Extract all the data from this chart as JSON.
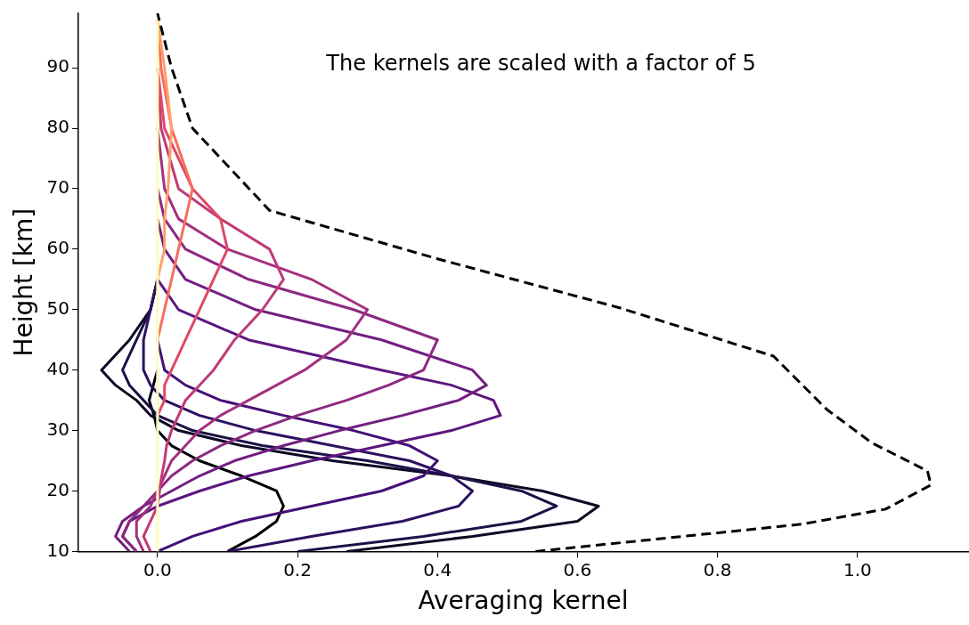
{
  "chart_data": {
    "type": "line",
    "xlabel": "Averaging kernel",
    "ylabel": "Height [km]",
    "annotations": [
      "The kernels are scaled with a factor of 5"
    ],
    "xlim": [
      -0.113,
      1.158
    ],
    "xticks": [
      {
        "value": 0,
        "label": "0.0"
      },
      0.2,
      0.4,
      0.6,
      0.8,
      {
        "value": 1,
        "label": "1.0"
      }
    ],
    "ylim": [
      10,
      99
    ],
    "yticks": [
      10,
      20,
      30,
      40,
      50,
      60,
      70,
      80,
      90
    ],
    "grid": false,
    "legend": false,
    "series": [
      {
        "color": "#000004",
        "x": [
          0.1,
          0.14,
          0.17,
          0.18,
          0.17,
          0.12,
          0.06,
          0.02,
          0,
          -0.005,
          -0.012,
          -0.006,
          0
        ],
        "values": [
          10,
          12.5,
          15,
          17.5,
          20,
          22.5,
          25,
          27.5,
          30,
          32.5,
          35,
          37.5,
          40
        ]
      },
      {
        "color": "#0b0924",
        "x": [
          0.27,
          0.45,
          0.6,
          0.63,
          0.55,
          0.42,
          0.25,
          0.12,
          0.03,
          -0.01,
          -0.03,
          -0.06,
          -0.08,
          -0.04,
          -0.01,
          0
        ],
        "values": [
          10,
          12.5,
          15,
          17.5,
          20,
          22.5,
          25,
          27.5,
          30,
          32.5,
          35,
          37.5,
          40,
          45,
          50,
          55
        ]
      },
      {
        "color": "#1d1147",
        "x": [
          0.2,
          0.38,
          0.52,
          0.57,
          0.52,
          0.42,
          0.3,
          0.15,
          0.05,
          0,
          -0.02,
          -0.04,
          -0.05,
          -0.03,
          -0.01,
          0
        ],
        "values": [
          10,
          12.5,
          15,
          17.5,
          20,
          22.5,
          25,
          27.5,
          30,
          32.5,
          35,
          37.5,
          40,
          45,
          50,
          55
        ]
      },
      {
        "color": "#2d1160",
        "x": [
          0.1,
          0.22,
          0.35,
          0.43,
          0.45,
          0.42,
          0.36,
          0.25,
          0.14,
          0.06,
          0.01,
          -0.01,
          -0.02,
          -0.02,
          -0.01,
          0
        ],
        "values": [
          10,
          12.5,
          15,
          17.5,
          20,
          22.5,
          25,
          27.5,
          30,
          32.5,
          35,
          37.5,
          40,
          45,
          50,
          55
        ]
      },
      {
        "color": "#451077",
        "x": [
          0,
          0.05,
          0.12,
          0.22,
          0.32,
          0.38,
          0.4,
          0.36,
          0.28,
          0.18,
          0.09,
          0.04,
          0.01,
          0
        ],
        "values": [
          10,
          12.5,
          15,
          17.5,
          20,
          22.5,
          25,
          27.5,
          30,
          32.5,
          35,
          37.5,
          40,
          45
        ]
      },
      {
        "color": "#5c167f",
        "x": [
          -0.03,
          -0.05,
          -0.04,
          0,
          0.06,
          0.13,
          0.22,
          0.32,
          0.42,
          0.49,
          0.48,
          0.42,
          0.32,
          0.13,
          0.03,
          0
        ],
        "values": [
          10,
          12.5,
          15,
          17.5,
          20,
          22.5,
          25,
          27.5,
          30,
          32.5,
          35,
          37.5,
          40,
          45,
          50,
          55
        ]
      },
      {
        "color": "#721f81",
        "x": [
          -0.04,
          -0.06,
          -0.05,
          -0.02,
          0.02,
          0.06,
          0.11,
          0.18,
          0.26,
          0.35,
          0.43,
          0.47,
          0.45,
          0.32,
          0.14,
          0.04,
          0.01,
          0
        ],
        "values": [
          10,
          12.5,
          15,
          17.5,
          20,
          22.5,
          25,
          27.5,
          30,
          32.5,
          35,
          37.5,
          40,
          45,
          50,
          55,
          60,
          65
        ]
      },
      {
        "color": "#8c2981",
        "x": [
          -0.03,
          -0.05,
          -0.04,
          -0.02,
          0,
          0.02,
          0.05,
          0.09,
          0.14,
          0.2,
          0.27,
          0.33,
          0.38,
          0.4,
          0.28,
          0.13,
          0.04,
          0.01,
          0
        ],
        "values": [
          10,
          12.5,
          15,
          17.5,
          20,
          22.5,
          25,
          27.5,
          30,
          32.5,
          35,
          37.5,
          40,
          45,
          50,
          55,
          60,
          65,
          70
        ]
      },
      {
        "color": "#a3307e",
        "x": [
          -0.02,
          -0.03,
          -0.03,
          -0.01,
          0,
          0.01,
          0.02,
          0.04,
          0.06,
          0.09,
          0.13,
          0.17,
          0.21,
          0.27,
          0.3,
          0.22,
          0.1,
          0.03,
          0.01,
          0
        ],
        "values": [
          10,
          12.5,
          15,
          17.5,
          20,
          22.5,
          25,
          27.5,
          30,
          32.5,
          35,
          37.5,
          40,
          45,
          50,
          55,
          60,
          65,
          70,
          80
        ]
      },
      {
        "color": "#c03a76",
        "x": [
          -0.01,
          -0.02,
          -0.01,
          0,
          0.003,
          0.006,
          0.01,
          0.013,
          0.02,
          0.03,
          0.04,
          0.06,
          0.08,
          0.11,
          0.15,
          0.18,
          0.16,
          0.09,
          0.03,
          0.005,
          0
        ],
        "values": [
          10,
          12.5,
          15,
          17.5,
          20,
          22.5,
          25,
          27.5,
          30,
          32.5,
          35,
          37.5,
          40,
          45,
          50,
          55,
          60,
          65,
          70,
          80,
          90
        ]
      },
      {
        "color": "#de4968",
        "x": [
          0,
          0.01,
          0.01,
          0.02,
          0.04,
          0.06,
          0.08,
          0.1,
          0.09,
          0.05,
          0.01,
          0
        ],
        "values": [
          32.5,
          35,
          37.5,
          40,
          45,
          50,
          55,
          60,
          65,
          70,
          80,
          90
        ]
      },
      {
        "color": "#f66e5c",
        "x": [
          0,
          0.01,
          0.02,
          0.03,
          0.04,
          0.05,
          0.02,
          0.005,
          0
        ],
        "values": [
          45,
          50,
          55,
          60,
          65,
          70,
          80,
          90,
          98
        ]
      },
      {
        "color": "#fe9f6d",
        "x": [
          0,
          0.01,
          0.01,
          0.015,
          0.02,
          0.01,
          0
        ],
        "values": [
          55,
          60,
          65,
          70,
          80,
          90,
          98
        ]
      },
      {
        "color": "#fcfdbf",
        "x": [
          0,
          0,
          0,
          0,
          0,
          0,
          0,
          0,
          0,
          0,
          0,
          0,
          0,
          0,
          0,
          0,
          0,
          0,
          0,
          0,
          0,
          0
        ],
        "values": [
          10,
          12.5,
          15,
          17.5,
          20,
          22.5,
          25,
          27.5,
          30,
          32.5,
          35,
          37.5,
          40,
          45,
          50,
          55,
          60,
          65,
          70,
          80,
          90,
          98
        ]
      },
      {
        "color": "#000000",
        "line_style": "dashed",
        "x": [
          0.54,
          0.92,
          1.04,
          1.105,
          1.1,
          1.02,
          0.956,
          0.88,
          0.66,
          0.4,
          0.16,
          0.05,
          0.02,
          0
        ],
        "values": [
          10,
          14.5,
          17,
          21,
          23.3,
          28,
          33.5,
          42.3,
          50.3,
          58.4,
          66.4,
          80,
          90,
          99
        ]
      }
    ]
  }
}
